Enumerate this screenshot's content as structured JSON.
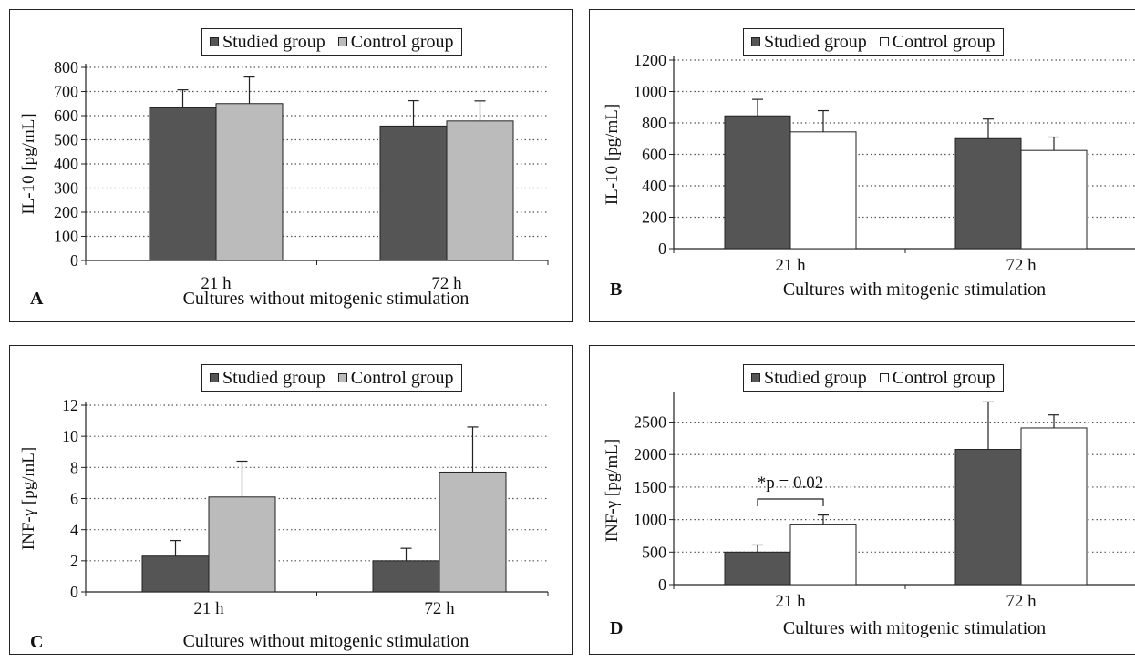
{
  "colors": {
    "studied": "#555555",
    "control_light": "#bbbbbc",
    "control_white": "#ffffff",
    "grid": "#555555",
    "axis": "#222222"
  },
  "chart_data": [
    {
      "panel": "A",
      "type": "bar",
      "categories": [
        "21 h",
        "72 h"
      ],
      "series": [
        {
          "name": "Studied group",
          "values": [
            632,
            557
          ],
          "errors": [
            75,
            105
          ]
        },
        {
          "name": "Control group",
          "values": [
            650,
            578
          ],
          "errors": [
            110,
            83
          ]
        }
      ],
      "series_colors": [
        "#555555",
        "#bbbbbc"
      ],
      "ylabel": "IL-10 [pg/mL]",
      "xlabel": "Cultures without mitogenic stimulation",
      "ylim": [
        0,
        800
      ],
      "yticks": [
        0,
        100,
        200,
        300,
        400,
        500,
        600,
        700,
        800
      ],
      "grid": true,
      "legend": "top-center"
    },
    {
      "panel": "B",
      "type": "bar",
      "categories": [
        "21 h",
        "72 h"
      ],
      "series": [
        {
          "name": "Studied group",
          "values": [
            845,
            700
          ],
          "errors": [
            105,
            125
          ]
        },
        {
          "name": "Control group",
          "values": [
            743,
            625
          ],
          "errors": [
            135,
            85
          ]
        }
      ],
      "series_colors": [
        "#555555",
        "#ffffff"
      ],
      "ylabel": "IL-10 [pg/mL]",
      "xlabel": "Cultures with mitogenic stimulation",
      "ylim": [
        0,
        1200
      ],
      "yticks": [
        0,
        200,
        400,
        600,
        800,
        1000,
        1200
      ],
      "grid": true,
      "legend": "top-center"
    },
    {
      "panel": "C",
      "type": "bar",
      "categories": [
        "21 h",
        "72 h"
      ],
      "series": [
        {
          "name": "Studied group",
          "values": [
            2.3,
            2.0
          ],
          "errors": [
            1.0,
            0.8
          ]
        },
        {
          "name": "Control group",
          "values": [
            6.1,
            7.7
          ],
          "errors": [
            2.3,
            2.9
          ]
        }
      ],
      "series_colors": [
        "#555555",
        "#bbbbbc"
      ],
      "ylabel": "INF-γ [pg/mL]",
      "xlabel": "Cultures without mitogenic stimulation",
      "ylim": [
        0,
        12
      ],
      "yticks": [
        0,
        2,
        4,
        6,
        8,
        10,
        12
      ],
      "grid": true,
      "legend": "top-center"
    },
    {
      "panel": "D",
      "type": "bar",
      "categories": [
        "21 h",
        "72 h"
      ],
      "series": [
        {
          "name": "Studied group",
          "values": [
            500,
            2080
          ],
          "errors": [
            110,
            730
          ]
        },
        {
          "name": "Control group",
          "values": [
            930,
            2410
          ],
          "errors": [
            140,
            200
          ]
        }
      ],
      "series_colors": [
        "#555555",
        "#ffffff"
      ],
      "ylabel": "INF-γ [pg/mL]",
      "xlabel": "Cultures with mitogenic stimulation",
      "ylim": [
        0,
        2900
      ],
      "yticks": [
        0,
        500,
        1000,
        1500,
        2000,
        2500
      ],
      "grid": true,
      "legend": "top-center",
      "annotation": {
        "text": "*p = 0.02",
        "category": "21 h"
      }
    }
  ]
}
